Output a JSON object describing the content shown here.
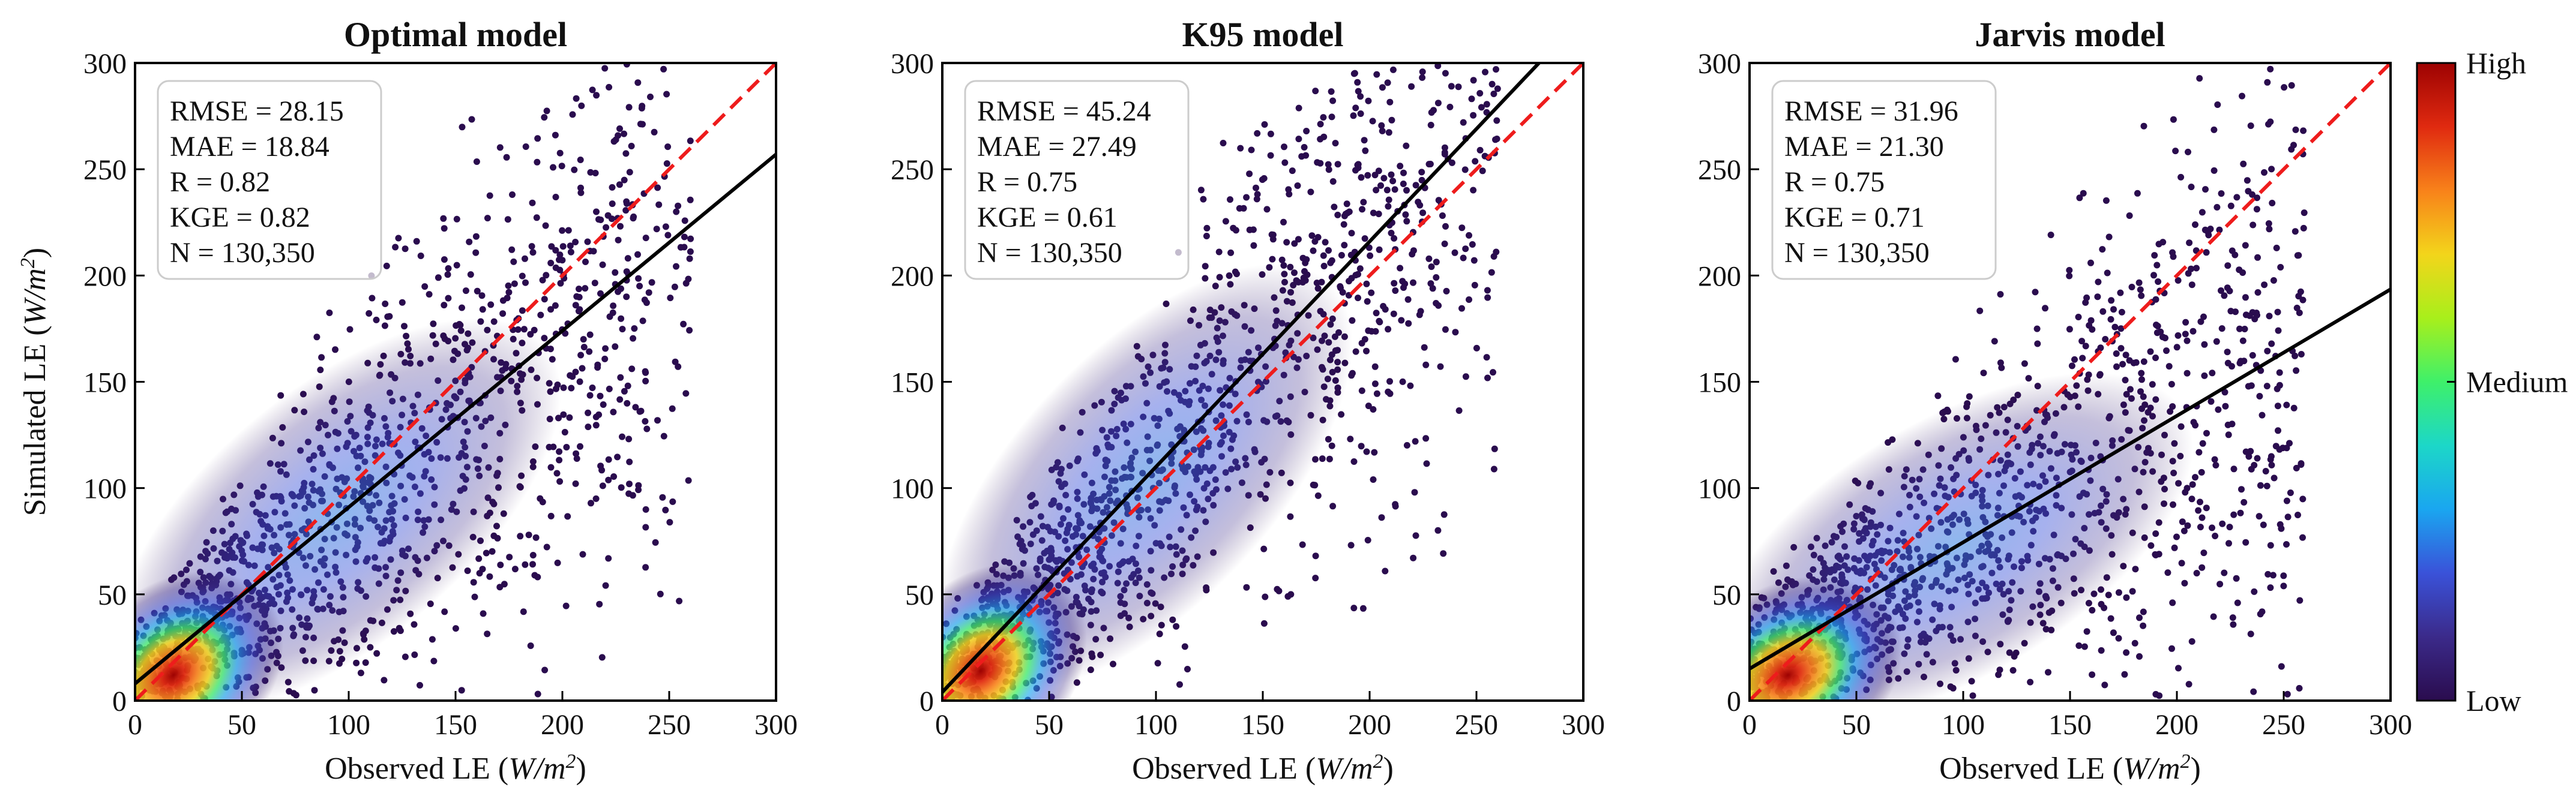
{
  "figure": {
    "ylabel": "Simulated LE",
    "xlabel": "Observed LE",
    "unit_base": "W/m",
    "unit_exp": "2",
    "colorbar": {
      "labels": [
        "High",
        "Medium",
        "Low"
      ],
      "colors": [
        "#2a0c4e",
        "#3b2a8a",
        "#3a52d9",
        "#1aa6f0",
        "#1cd7c8",
        "#3ef06a",
        "#a8ef1b",
        "#f3d51b",
        "#f8821a",
        "#e02a10",
        "#9d0202"
      ]
    },
    "colors": {
      "one_to_one": "#ee1c1c",
      "fit_line": "#000000",
      "scatter_low": "#2a0c4e"
    }
  },
  "chart_data": [
    {
      "type": "scatter",
      "title": "Optimal model",
      "xlabel": "Observed LE (W/m2)",
      "ylabel": "Simulated LE (W/m2)",
      "xlim": [
        0,
        300
      ],
      "ylim": [
        0,
        300
      ],
      "xticks": [
        0,
        50,
        100,
        150,
        200,
        250,
        300
      ],
      "yticks": [
        0,
        50,
        100,
        150,
        200,
        250,
        300
      ],
      "stats": [
        "RMSE = 28.15",
        "MAE = 18.84",
        "R = 0.82",
        "KGE = 0.82",
        "N = 130,350"
      ],
      "fit_line": {
        "slope": 0.83,
        "intercept": 8
      },
      "one_to_one": true,
      "density_peak": [
        18,
        12
      ]
    },
    {
      "type": "scatter",
      "title": "K95 model",
      "xlabel": "Observed LE (W/m2)",
      "ylabel": "",
      "xlim": [
        0,
        300
      ],
      "ylim": [
        0,
        300
      ],
      "xticks": [
        0,
        50,
        100,
        150,
        200,
        250,
        300
      ],
      "yticks": [
        0,
        50,
        100,
        150,
        200,
        250,
        300
      ],
      "stats": [
        "RMSE = 45.24",
        "MAE = 27.49",
        "R = 0.75",
        "KGE = 0.61",
        "N = 130,350"
      ],
      "fit_line": {
        "slope": 1.06,
        "intercept": 4
      },
      "one_to_one": true,
      "density_peak": [
        18,
        14
      ]
    },
    {
      "type": "scatter",
      "title": "Jarvis model",
      "xlabel": "Observed LE (W/m2)",
      "ylabel": "",
      "xlim": [
        0,
        300
      ],
      "ylim": [
        0,
        300
      ],
      "xticks": [
        0,
        50,
        100,
        150,
        200,
        250,
        300
      ],
      "yticks": [
        0,
        50,
        100,
        150,
        200,
        250,
        300
      ],
      "stats": [
        "RMSE = 31.96",
        "MAE = 21.30",
        "R = 0.75",
        "KGE = 0.71",
        "N = 130,350"
      ],
      "fit_line": {
        "slope": 0.595,
        "intercept": 15
      },
      "one_to_one": true,
      "density_peak": [
        18,
        12
      ]
    }
  ]
}
